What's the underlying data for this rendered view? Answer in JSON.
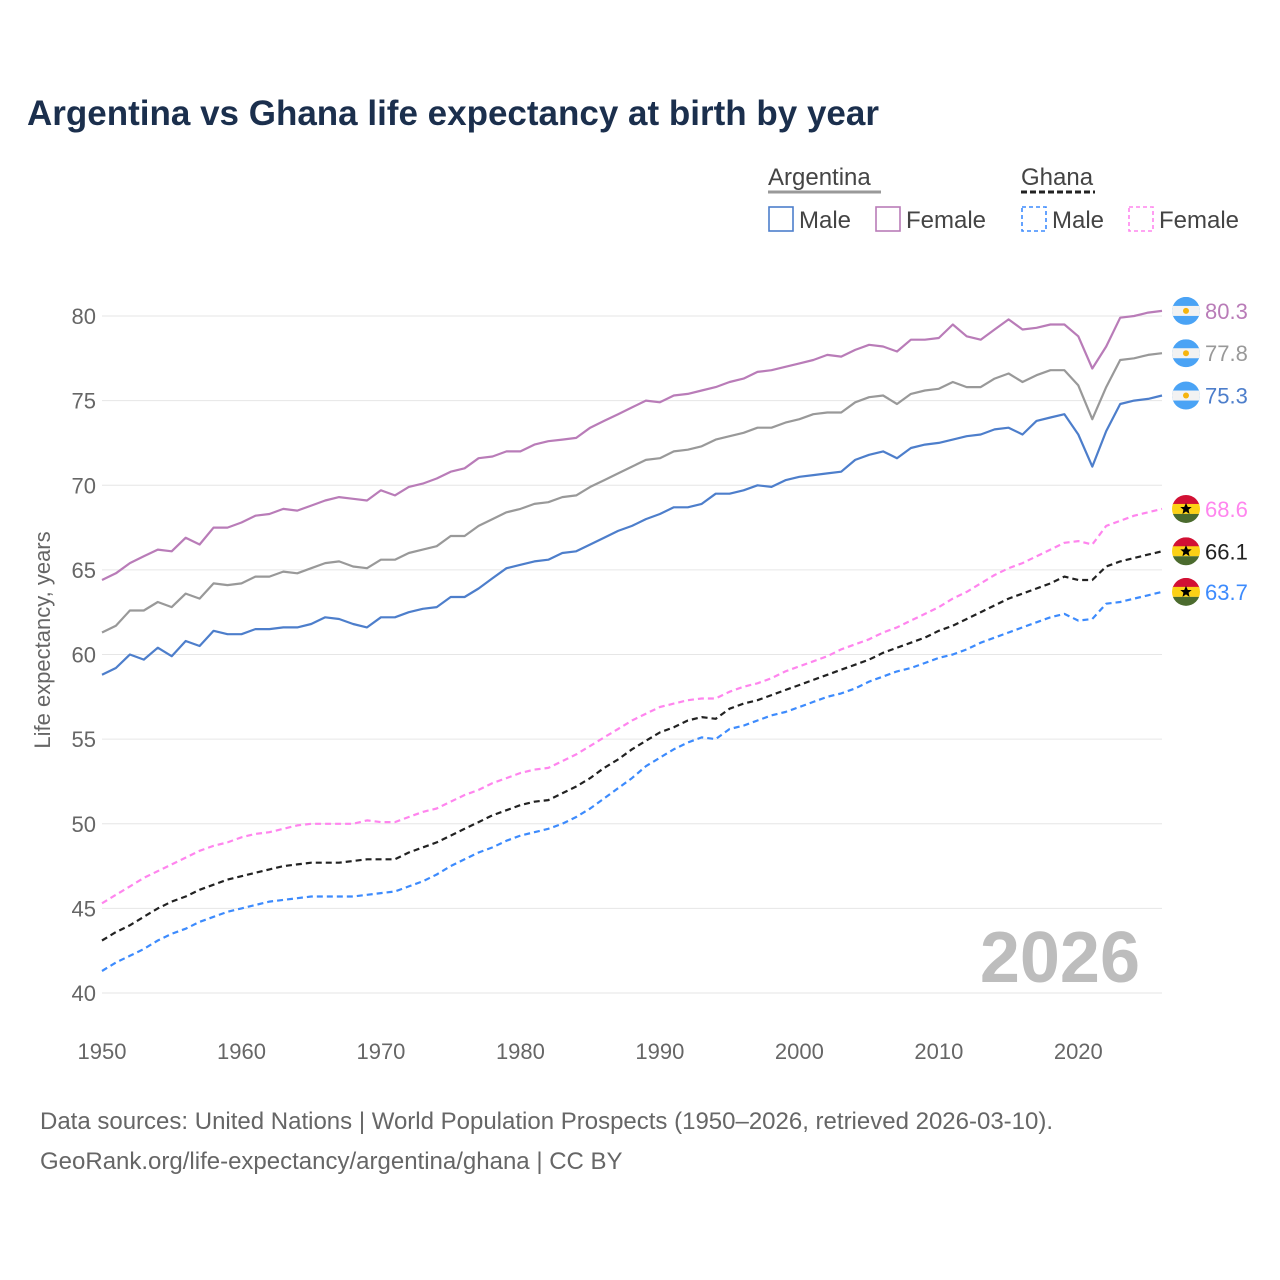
{
  "title": "Argentina vs Ghana life expectancy at birth by year",
  "footer": {
    "line1": "Data sources: United Nations | World Population Prospects (1950–2026, retrieved 2026-03-10).",
    "line2": "GeoRank.org/life-expectancy/argentina/ghana | CC BY"
  },
  "chart_data": {
    "type": "line",
    "title": "Argentina vs Ghana life expectancy at birth by year",
    "xlabel": "",
    "ylabel": "Life expectancy, years",
    "xlim": [
      1950,
      2026
    ],
    "ylim": [
      40,
      82
    ],
    "x_start": 1950,
    "x_end": 2026,
    "x_ticks": [
      "1950",
      "1960",
      "1970",
      "1980",
      "1990",
      "2000",
      "2010",
      "2020"
    ],
    "y_ticks": [
      "40",
      "45",
      "50",
      "55",
      "60",
      "65",
      "70",
      "75",
      "80"
    ],
    "grid": true,
    "year_watermark": "2026",
    "legend": {
      "placement": "top-right",
      "groups": [
        {
          "name": "Argentina",
          "items": [
            "Male",
            "Female"
          ]
        },
        {
          "name": "Ghana",
          "items": [
            "Male",
            "Female"
          ]
        }
      ]
    },
    "series": [
      {
        "name": "Argentina Female",
        "country": "Argentina",
        "color": "#b97cb8",
        "dashed": false,
        "end_label": "80.3",
        "values": [
          64.4,
          64.8,
          65.4,
          65.8,
          66.2,
          66.1,
          66.9,
          66.5,
          67.5,
          67.5,
          67.8,
          68.2,
          68.3,
          68.6,
          68.5,
          68.8,
          69.1,
          69.3,
          69.2,
          69.1,
          69.7,
          69.4,
          69.9,
          70.1,
          70.4,
          70.8,
          71.0,
          71.6,
          71.7,
          72.0,
          72.0,
          72.4,
          72.6,
          72.7,
          72.8,
          73.4,
          73.8,
          74.2,
          74.6,
          75.0,
          74.9,
          75.3,
          75.4,
          75.6,
          75.8,
          76.1,
          76.3,
          76.7,
          76.8,
          77.0,
          77.2,
          77.4,
          77.7,
          77.6,
          78.0,
          78.3,
          78.2,
          77.9,
          78.6,
          78.6,
          78.7,
          79.5,
          78.8,
          78.6,
          79.2,
          79.8,
          79.2,
          79.3,
          79.5,
          79.5,
          78.8,
          76.9,
          78.2,
          79.9,
          80.0,
          80.2,
          80.3
        ]
      },
      {
        "name": "Argentina",
        "country": "Argentina",
        "color": "#999999",
        "dashed": false,
        "end_label": "77.8",
        "values": [
          61.3,
          61.7,
          62.6,
          62.6,
          63.1,
          62.8,
          63.6,
          63.3,
          64.2,
          64.1,
          64.2,
          64.6,
          64.6,
          64.9,
          64.8,
          65.1,
          65.4,
          65.5,
          65.2,
          65.1,
          65.6,
          65.6,
          66.0,
          66.2,
          66.4,
          67.0,
          67.0,
          67.6,
          68.0,
          68.4,
          68.6,
          68.9,
          69.0,
          69.3,
          69.4,
          69.9,
          70.3,
          70.7,
          71.1,
          71.5,
          71.6,
          72.0,
          72.1,
          72.3,
          72.7,
          72.9,
          73.1,
          73.4,
          73.4,
          73.7,
          73.9,
          74.2,
          74.3,
          74.3,
          74.9,
          75.2,
          75.3,
          74.8,
          75.4,
          75.6,
          75.7,
          76.1,
          75.8,
          75.8,
          76.3,
          76.6,
          76.1,
          76.5,
          76.8,
          76.8,
          75.9,
          73.9,
          75.8,
          77.4,
          77.5,
          77.7,
          77.8
        ]
      },
      {
        "name": "Argentina Male",
        "country": "Argentina",
        "color": "#4d7ecb",
        "dashed": false,
        "end_label": "75.3",
        "values": [
          58.8,
          59.2,
          60.0,
          59.7,
          60.4,
          59.9,
          60.8,
          60.5,
          61.4,
          61.2,
          61.2,
          61.5,
          61.5,
          61.6,
          61.6,
          61.8,
          62.2,
          62.1,
          61.8,
          61.6,
          62.2,
          62.2,
          62.5,
          62.7,
          62.8,
          63.4,
          63.4,
          63.9,
          64.5,
          65.1,
          65.3,
          65.5,
          65.6,
          66.0,
          66.1,
          66.5,
          66.9,
          67.3,
          67.6,
          68.0,
          68.3,
          68.7,
          68.7,
          68.9,
          69.5,
          69.5,
          69.7,
          70.0,
          69.9,
          70.3,
          70.5,
          70.6,
          70.7,
          70.8,
          71.5,
          71.8,
          72.0,
          71.6,
          72.2,
          72.4,
          72.5,
          72.7,
          72.9,
          73.0,
          73.3,
          73.4,
          73.0,
          73.8,
          74.0,
          74.2,
          73.0,
          71.1,
          73.2,
          74.8,
          75.0,
          75.1,
          75.3
        ]
      },
      {
        "name": "Ghana Female",
        "country": "Ghana",
        "color": "#ff85ee",
        "dashed": true,
        "end_label": "68.6",
        "values": [
          45.3,
          45.8,
          46.3,
          46.8,
          47.2,
          47.6,
          48.0,
          48.4,
          48.7,
          48.9,
          49.2,
          49.4,
          49.5,
          49.7,
          49.9,
          50.0,
          50.0,
          50.0,
          50.0,
          50.2,
          50.1,
          50.1,
          50.4,
          50.7,
          50.9,
          51.3,
          51.7,
          52.0,
          52.4,
          52.7,
          53.0,
          53.2,
          53.3,
          53.7,
          54.1,
          54.6,
          55.1,
          55.6,
          56.1,
          56.5,
          56.9,
          57.1,
          57.3,
          57.4,
          57.4,
          57.8,
          58.1,
          58.3,
          58.6,
          59.0,
          59.3,
          59.6,
          59.9,
          60.3,
          60.6,
          60.9,
          61.3,
          61.6,
          62.0,
          62.4,
          62.8,
          63.3,
          63.7,
          64.2,
          64.7,
          65.1,
          65.4,
          65.8,
          66.2,
          66.6,
          66.7,
          66.5,
          67.6,
          67.9,
          68.2,
          68.4,
          68.6
        ]
      },
      {
        "name": "Ghana",
        "country": "Ghana",
        "color": "#222222",
        "dashed": true,
        "end_label": "66.1",
        "values": [
          43.1,
          43.6,
          44.0,
          44.5,
          45.0,
          45.4,
          45.7,
          46.1,
          46.4,
          46.7,
          46.9,
          47.1,
          47.3,
          47.5,
          47.6,
          47.7,
          47.7,
          47.7,
          47.8,
          47.9,
          47.9,
          47.9,
          48.3,
          48.6,
          48.9,
          49.3,
          49.7,
          50.1,
          50.5,
          50.8,
          51.1,
          51.3,
          51.4,
          51.8,
          52.2,
          52.7,
          53.3,
          53.8,
          54.4,
          54.9,
          55.4,
          55.7,
          56.1,
          56.3,
          56.2,
          56.8,
          57.1,
          57.3,
          57.6,
          57.9,
          58.2,
          58.5,
          58.8,
          59.1,
          59.4,
          59.7,
          60.1,
          60.4,
          60.7,
          61.0,
          61.4,
          61.7,
          62.1,
          62.5,
          62.9,
          63.3,
          63.6,
          63.9,
          64.2,
          64.6,
          64.4,
          64.4,
          65.2,
          65.5,
          65.7,
          65.9,
          66.1
        ]
      },
      {
        "name": "Ghana Male",
        "country": "Ghana",
        "color": "#3d8bfd",
        "dashed": true,
        "end_label": "63.7",
        "values": [
          41.3,
          41.8,
          42.2,
          42.6,
          43.1,
          43.5,
          43.8,
          44.2,
          44.5,
          44.8,
          45.0,
          45.2,
          45.4,
          45.5,
          45.6,
          45.7,
          45.7,
          45.7,
          45.7,
          45.8,
          45.9,
          46.0,
          46.3,
          46.6,
          47.0,
          47.5,
          47.9,
          48.3,
          48.6,
          49.0,
          49.3,
          49.5,
          49.7,
          50.0,
          50.4,
          50.9,
          51.5,
          52.1,
          52.7,
          53.4,
          53.9,
          54.4,
          54.8,
          55.1,
          55.0,
          55.6,
          55.8,
          56.1,
          56.4,
          56.6,
          56.9,
          57.2,
          57.5,
          57.7,
          58.0,
          58.4,
          58.7,
          59.0,
          59.2,
          59.5,
          59.8,
          60.0,
          60.3,
          60.7,
          61.0,
          61.3,
          61.6,
          61.9,
          62.2,
          62.4,
          62.0,
          62.1,
          63.0,
          63.1,
          63.3,
          63.5,
          63.7
        ]
      }
    ]
  }
}
